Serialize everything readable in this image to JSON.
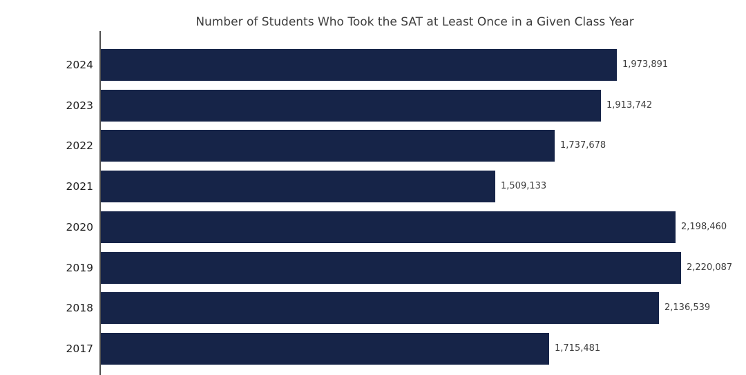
{
  "chart_data": {
    "type": "bar",
    "orientation": "horizontal",
    "title": "Number of Students Who Took the SAT at Least Once in a Given Class Year",
    "categories": [
      "2024",
      "2023",
      "2022",
      "2021",
      "2020",
      "2019",
      "2018",
      "2017"
    ],
    "values": [
      1973891,
      1913742,
      1737678,
      1509133,
      2198460,
      2220087,
      2136539,
      1715481
    ],
    "value_labels": [
      "1,973,891",
      "1,913,742",
      "1,737,678",
      "1,509,133",
      "2,198,460",
      "2,220,087",
      "2,136,539",
      "1,715,481"
    ],
    "xlabel": "",
    "ylabel": "",
    "xlim": [
      0,
      2408000
    ],
    "grid": false,
    "legend": null,
    "bar_color": "#162448",
    "axis_line_color": "#4f4f4f",
    "title_color": "#3d3d3d",
    "tick_label_color": "#1f1f1f",
    "value_label_color": "#3d3d3d",
    "background_color": "#ffffff"
  }
}
